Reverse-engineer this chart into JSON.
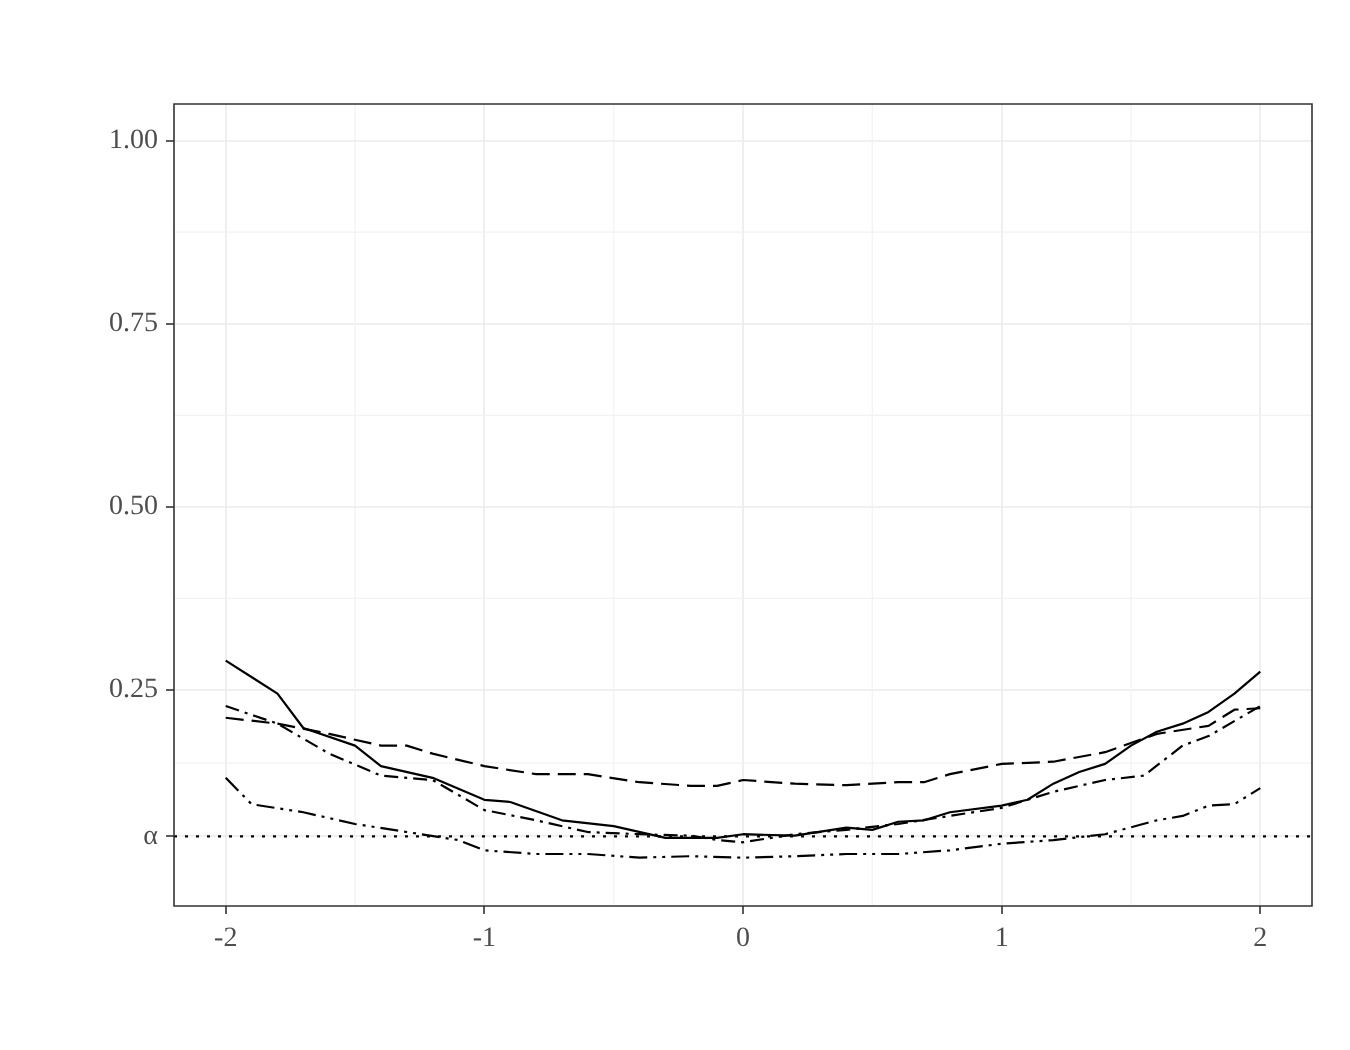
{
  "chart_data": {
    "type": "line",
    "xlim": [
      -2.2,
      2.2
    ],
    "xticks": [
      -2,
      -1,
      0,
      1,
      2
    ],
    "ylim": [
      -0.045,
      1.05
    ],
    "yticks": [
      {
        "value": 0.05,
        "label": "α"
      },
      0.25,
      {
        "value": 0.5,
        "label": "0.50"
      },
      0.75,
      {
        "value": 1,
        "label": "1.00"
      }
    ],
    "grid": true,
    "legend": false,
    "marker": "none",
    "ref_lines": [
      {
        "axis": "y",
        "value": 0.05,
        "line_style": "dotted",
        "color": "#000000"
      }
    ],
    "series": [
      {
        "color": "#000000",
        "line_style": "solid",
        "x": [
          -2,
          -1.8,
          -1.7,
          -1.5,
          -1.4,
          -1.2,
          -1,
          -0.9,
          -0.7,
          -0.5,
          -0.3,
          -0.1,
          0,
          0.2,
          0.4,
          0.5,
          0.6,
          0.7,
          0.8,
          1,
          1.1,
          1.2,
          1.3,
          1.4,
          1.5,
          1.6,
          1.7,
          1.8,
          1.9,
          2
        ],
        "values": [
          0.29,
          0.245,
          0.198,
          0.174,
          0.146,
          0.13,
          0.1,
          0.097,
          0.072,
          0.064,
          0.048,
          0.048,
          0.053,
          0.051,
          0.062,
          0.059,
          0.07,
          0.072,
          0.083,
          0.092,
          0.1,
          0.122,
          0.138,
          0.149,
          0.174,
          0.193,
          0.204,
          0.22,
          0.245,
          0.275
        ]
      },
      {
        "color": "#000000",
        "line_style": "dashed",
        "x": [
          -2,
          -1.8,
          -1.6,
          -1.4,
          -1.3,
          -1.2,
          -1,
          -0.8,
          -0.6,
          -0.4,
          -0.2,
          -0.1,
          0,
          0.2,
          0.4,
          0.6,
          0.7,
          0.8,
          1,
          1.2,
          1.4,
          1.6,
          1.8,
          1.9,
          2
        ],
        "values": [
          0.212,
          0.204,
          0.19,
          0.174,
          0.174,
          0.163,
          0.146,
          0.135,
          0.135,
          0.124,
          0.119,
          0.119,
          0.127,
          0.122,
          0.12,
          0.124,
          0.124,
          0.135,
          0.149,
          0.152,
          0.165,
          0.19,
          0.201,
          0.223,
          0.225
        ]
      },
      {
        "color": "#000000",
        "line_style": "dashdot",
        "x": [
          -2,
          -1.8,
          -1.6,
          -1.4,
          -1.2,
          -1,
          -0.8,
          -0.6,
          -0.4,
          -0.2,
          -0.1,
          0,
          0.2,
          0.4,
          0.6,
          0.8,
          1,
          1.2,
          1.4,
          1.55,
          1.7,
          1.8,
          2
        ],
        "values": [
          0.228,
          0.204,
          0.163,
          0.133,
          0.127,
          0.086,
          0.072,
          0.056,
          0.053,
          0.051,
          0.045,
          0.042,
          0.053,
          0.059,
          0.067,
          0.078,
          0.089,
          0.111,
          0.127,
          0.133,
          0.174,
          0.187,
          0.228
        ]
      },
      {
        "color": "#000000",
        "line_style": "dashdotdot",
        "x": [
          -2,
          -1.9,
          -1.7,
          -1.5,
          -1.3,
          -1.1,
          -1,
          -0.8,
          -0.6,
          -0.4,
          -0.2,
          0,
          0.2,
          0.4,
          0.6,
          0.8,
          1,
          1.2,
          1.4,
          1.6,
          1.7,
          1.8,
          1.9,
          2
        ],
        "values": [
          0.13,
          0.094,
          0.083,
          0.067,
          0.056,
          0.045,
          0.031,
          0.026,
          0.026,
          0.021,
          0.023,
          0.021,
          0.023,
          0.026,
          0.026,
          0.031,
          0.04,
          0.045,
          0.053,
          0.072,
          0.078,
          0.092,
          0.094,
          0.116
        ]
      }
    ]
  }
}
